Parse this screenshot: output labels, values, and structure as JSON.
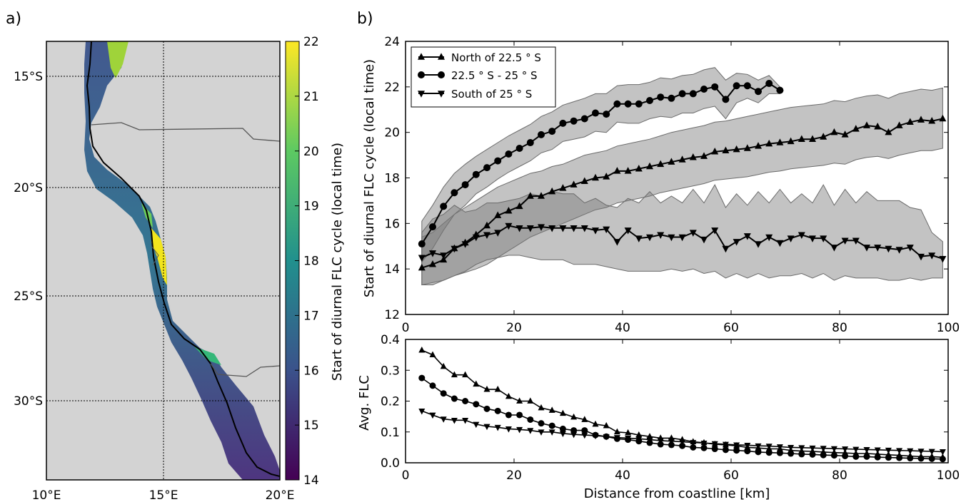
{
  "panels": {
    "a_label": "a)",
    "b_label": "b)"
  },
  "map": {
    "lat_ticks": [
      "15°S",
      "20°S",
      "25°S",
      "30°S"
    ],
    "lon_ticks": [
      "10°E",
      "15°E",
      "20°E"
    ],
    "background_color": "#d3d3d3",
    "colorbar": {
      "ticks": [
        "22",
        "21",
        "20",
        "19",
        "18",
        "17",
        "16",
        "15",
        "14"
      ],
      "label": "Start of diurnal FLC cycle (local time)",
      "colormap_stops": [
        "#440154",
        "#3b528b",
        "#21908d",
        "#5dc962",
        "#fde725"
      ]
    }
  },
  "chart_data": [
    {
      "type": "line",
      "ylabel": "Start of diurnal FLC cycle (local time)",
      "xlim": [
        0,
        100
      ],
      "ylim": [
        12,
        24
      ],
      "x_ticks": [
        "0",
        "20",
        "40",
        "60",
        "80",
        "100"
      ],
      "y_ticks": [
        "24",
        "22",
        "20",
        "18",
        "16",
        "14",
        "12"
      ],
      "legend_position": "top-left",
      "series": [
        {
          "name": "North of 22.5$^\\circ$S",
          "legend_label": "North of 22.5 ° S",
          "marker": "triangle-up",
          "x": [
            3,
            5,
            7,
            9,
            11,
            13,
            15,
            17,
            19,
            21,
            23,
            25,
            27,
            29,
            31,
            33,
            35,
            37,
            39,
            41,
            43,
            45,
            47,
            49,
            51,
            53,
            55,
            57,
            59,
            61,
            63,
            65,
            67,
            69,
            71,
            73,
            75,
            77,
            79,
            81,
            83,
            85,
            87,
            89,
            91,
            93,
            95,
            97,
            99
          ],
          "y": [
            14.05,
            14.2,
            14.4,
            14.9,
            15.15,
            15.5,
            15.9,
            16.35,
            16.55,
            16.75,
            17.2,
            17.2,
            17.4,
            17.55,
            17.7,
            17.85,
            18.0,
            18.05,
            18.3,
            18.3,
            18.4,
            18.5,
            18.6,
            18.7,
            18.8,
            18.9,
            18.95,
            19.15,
            19.2,
            19.25,
            19.3,
            19.4,
            19.5,
            19.55,
            19.6,
            19.7,
            19.7,
            19.8,
            20.0,
            19.9,
            20.15,
            20.3,
            20.25,
            20.0,
            20.3,
            20.45,
            20.55,
            20.5,
            20.6
          ],
          "band_upper": [
            15.4,
            15.6,
            16.0,
            16.4,
            16.7,
            17.0,
            17.3,
            17.6,
            17.8,
            18.0,
            18.2,
            18.3,
            18.5,
            18.6,
            18.8,
            19.0,
            19.1,
            19.2,
            19.4,
            19.5,
            19.6,
            19.7,
            19.85,
            20.0,
            20.1,
            20.2,
            20.3,
            20.45,
            20.5,
            20.6,
            20.7,
            20.8,
            20.9,
            21.0,
            21.1,
            21.15,
            21.2,
            21.25,
            21.4,
            21.35,
            21.5,
            21.6,
            21.65,
            21.5,
            21.7,
            21.8,
            21.9,
            21.85,
            21.95
          ],
          "band_lower": [
            13.3,
            13.4,
            13.5,
            13.7,
            13.85,
            14.0,
            14.2,
            14.5,
            14.8,
            15.1,
            15.4,
            15.6,
            15.8,
            16.0,
            16.2,
            16.4,
            16.6,
            16.7,
            16.9,
            17.0,
            17.1,
            17.2,
            17.35,
            17.45,
            17.55,
            17.65,
            17.75,
            17.9,
            17.95,
            18.0,
            18.05,
            18.15,
            18.25,
            18.3,
            18.4,
            18.45,
            18.5,
            18.55,
            18.65,
            18.6,
            18.8,
            18.9,
            18.95,
            18.85,
            19.0,
            19.1,
            19.2,
            19.2,
            19.3
          ]
        },
        {
          "name": "22.5$^\\circ$S - 25$^\\circ$S",
          "legend_label": "22.5 ° S - 25 ° S",
          "marker": "circle",
          "x": [
            3,
            5,
            7,
            9,
            11,
            13,
            15,
            17,
            19,
            21,
            23,
            25,
            27,
            29,
            31,
            33,
            35,
            37,
            39,
            41,
            43,
            45,
            47,
            49,
            51,
            53,
            55,
            57,
            59,
            61,
            63,
            65,
            67,
            69
          ],
          "y": [
            15.1,
            15.85,
            16.75,
            17.35,
            17.7,
            18.15,
            18.45,
            18.75,
            19.05,
            19.3,
            19.55,
            19.9,
            20.05,
            20.4,
            20.5,
            20.6,
            20.85,
            20.8,
            21.25,
            21.25,
            21.25,
            21.4,
            21.55,
            21.5,
            21.7,
            21.7,
            21.9,
            22.0,
            21.45,
            22.05,
            22.05,
            21.8,
            22.15,
            21.85
          ],
          "band_upper": [
            16.1,
            16.8,
            17.6,
            18.2,
            18.6,
            18.95,
            19.25,
            19.55,
            19.85,
            20.1,
            20.35,
            20.7,
            20.9,
            21.2,
            21.35,
            21.5,
            21.7,
            21.7,
            22.05,
            22.1,
            22.1,
            22.2,
            22.4,
            22.35,
            22.5,
            22.55,
            22.75,
            22.85,
            22.3,
            22.6,
            22.55,
            22.3,
            22.5,
            22.0
          ],
          "band_lower": [
            14.3,
            14.9,
            15.7,
            16.4,
            16.8,
            17.3,
            17.6,
            17.95,
            18.25,
            18.5,
            18.75,
            19.1,
            19.25,
            19.6,
            19.7,
            19.8,
            20.05,
            20.0,
            20.45,
            20.4,
            20.4,
            20.6,
            20.7,
            20.65,
            20.85,
            20.85,
            21.05,
            21.15,
            20.6,
            21.3,
            21.5,
            21.3,
            21.7,
            21.7
          ]
        },
        {
          "name": "South of 25$^\\circ$S",
          "legend_label": "South of 25 ° S",
          "marker": "triangle-down",
          "x": [
            3,
            5,
            7,
            9,
            11,
            13,
            15,
            17,
            19,
            21,
            23,
            25,
            27,
            29,
            31,
            33,
            35,
            37,
            39,
            41,
            43,
            45,
            47,
            49,
            51,
            53,
            55,
            57,
            59,
            61,
            63,
            65,
            67,
            69,
            71,
            73,
            75,
            77,
            79,
            81,
            83,
            85,
            87,
            89,
            91,
            93,
            95,
            97,
            99
          ],
          "y": [
            14.5,
            14.7,
            14.6,
            14.9,
            15.1,
            15.4,
            15.5,
            15.6,
            15.9,
            15.8,
            15.8,
            15.85,
            15.8,
            15.8,
            15.8,
            15.8,
            15.7,
            15.75,
            15.2,
            15.7,
            15.35,
            15.4,
            15.5,
            15.4,
            15.4,
            15.6,
            15.3,
            15.7,
            14.9,
            15.2,
            15.45,
            15.1,
            15.4,
            15.15,
            15.35,
            15.5,
            15.35,
            15.35,
            14.95,
            15.25,
            15.25,
            14.95,
            14.95,
            14.9,
            14.85,
            14.95,
            14.55,
            14.6,
            14.45
          ],
          "band_upper": [
            15.6,
            16.2,
            16.4,
            16.8,
            16.5,
            16.6,
            16.9,
            16.9,
            17.0,
            17.1,
            17.3,
            17.2,
            17.4,
            17.3,
            17.3,
            16.9,
            17.1,
            16.8,
            16.7,
            17.1,
            16.9,
            17.4,
            16.9,
            17.2,
            16.9,
            17.5,
            16.9,
            17.7,
            16.7,
            17.3,
            16.8,
            17.4,
            16.9,
            17.5,
            16.9,
            17.3,
            16.9,
            17.7,
            16.8,
            17.5,
            16.9,
            17.4,
            17.0,
            17.0,
            17.0,
            16.7,
            16.6,
            15.6,
            15.2
          ],
          "band_lower": [
            13.3,
            13.3,
            13.5,
            13.7,
            13.9,
            14.2,
            14.4,
            14.5,
            14.6,
            14.6,
            14.5,
            14.4,
            14.4,
            14.4,
            14.2,
            14.2,
            14.2,
            14.1,
            14.0,
            13.9,
            13.9,
            13.9,
            13.9,
            14.0,
            13.9,
            14.0,
            13.8,
            13.9,
            13.6,
            13.8,
            13.6,
            13.8,
            13.6,
            13.7,
            13.7,
            13.8,
            13.6,
            13.8,
            13.5,
            13.7,
            13.6,
            13.6,
            13.6,
            13.5,
            13.5,
            13.6,
            13.5,
            13.6,
            13.6
          ]
        }
      ]
    },
    {
      "type": "line",
      "xlabel": "Distance from coastline [km]",
      "ylabel": "Avg. FLC",
      "xlim": [
        0,
        100
      ],
      "ylim": [
        0,
        0.4
      ],
      "x_ticks": [
        "0",
        "20",
        "40",
        "60",
        "80",
        "100"
      ],
      "y_ticks": [
        "0.4",
        "0.3",
        "0.2",
        "0.1",
        "0.0"
      ],
      "series": [
        {
          "marker": "triangle-up",
          "x": [
            3,
            5,
            7,
            9,
            11,
            13,
            15,
            17,
            19,
            21,
            23,
            25,
            27,
            29,
            31,
            33,
            35,
            37,
            39,
            41,
            43,
            45,
            47,
            49,
            51,
            53,
            55,
            57,
            59,
            61,
            63,
            65,
            67,
            69,
            71,
            73,
            75,
            77,
            79,
            81,
            83,
            85,
            87,
            89,
            91,
            93,
            95,
            97,
            99
          ],
          "y": [
            0.365,
            0.35,
            0.312,
            0.285,
            0.285,
            0.255,
            0.238,
            0.238,
            0.215,
            0.2,
            0.2,
            0.178,
            0.17,
            0.16,
            0.148,
            0.14,
            0.125,
            0.12,
            0.1,
            0.097,
            0.09,
            0.085,
            0.08,
            0.08,
            0.075,
            0.068,
            0.065,
            0.06,
            0.058,
            0.055,
            0.05,
            0.048,
            0.045,
            0.045,
            0.04,
            0.038,
            0.037,
            0.035,
            0.033,
            0.032,
            0.03,
            0.03,
            0.028,
            0.026,
            0.024,
            0.022,
            0.02,
            0.02,
            0.018
          ]
        },
        {
          "marker": "circle",
          "x": [
            3,
            5,
            7,
            9,
            11,
            13,
            15,
            17,
            19,
            21,
            23,
            25,
            27,
            29,
            31,
            33,
            35,
            37,
            39,
            41,
            43,
            45,
            47,
            49,
            51,
            53,
            55,
            57,
            59,
            61,
            63,
            65,
            67,
            69,
            71,
            73,
            75,
            77,
            79,
            81,
            83,
            85,
            87,
            89,
            91,
            93,
            95,
            97,
            99
          ],
          "y": [
            0.275,
            0.25,
            0.225,
            0.208,
            0.2,
            0.19,
            0.175,
            0.168,
            0.155,
            0.155,
            0.14,
            0.128,
            0.12,
            0.11,
            0.105,
            0.105,
            0.09,
            0.085,
            0.078,
            0.075,
            0.07,
            0.065,
            0.06,
            0.058,
            0.055,
            0.05,
            0.048,
            0.045,
            0.042,
            0.04,
            0.038,
            0.035,
            0.033,
            0.032,
            0.03,
            0.028,
            0.027,
            0.025,
            0.024,
            0.022,
            0.02,
            0.02,
            0.018,
            0.017,
            0.016,
            0.015,
            0.014,
            0.013,
            0.012
          ]
        },
        {
          "marker": "triangle-down",
          "x": [
            3,
            5,
            7,
            9,
            11,
            13,
            15,
            17,
            19,
            21,
            23,
            25,
            27,
            29,
            31,
            33,
            35,
            37,
            39,
            41,
            43,
            45,
            47,
            49,
            51,
            53,
            55,
            57,
            59,
            61,
            63,
            65,
            67,
            69,
            71,
            73,
            75,
            77,
            79,
            81,
            83,
            85,
            87,
            89,
            91,
            93,
            95,
            97,
            99
          ],
          "y": [
            0.168,
            0.155,
            0.142,
            0.138,
            0.138,
            0.125,
            0.118,
            0.115,
            0.11,
            0.108,
            0.105,
            0.1,
            0.1,
            0.095,
            0.092,
            0.09,
            0.088,
            0.085,
            0.082,
            0.08,
            0.078,
            0.075,
            0.072,
            0.07,
            0.068,
            0.066,
            0.064,
            0.062,
            0.06,
            0.058,
            0.057,
            0.055,
            0.054,
            0.052,
            0.05,
            0.049,
            0.048,
            0.047,
            0.046,
            0.045,
            0.044,
            0.043,
            0.042,
            0.041,
            0.04,
            0.039,
            0.038,
            0.037,
            0.036
          ]
        }
      ]
    }
  ]
}
